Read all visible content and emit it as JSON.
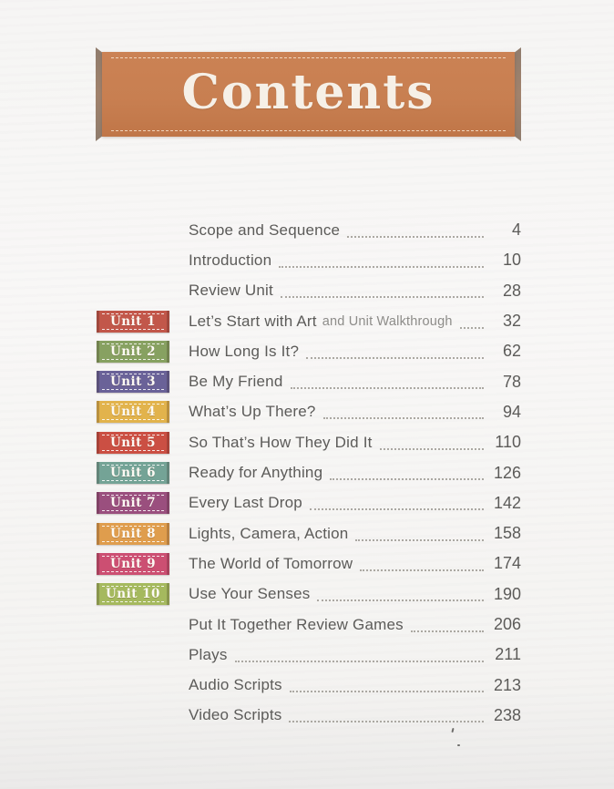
{
  "banner": {
    "title": "Contents",
    "ribbon_color": "#c87f51",
    "ribbon_edge_color": "#96806f",
    "title_color": "#f6f0e7"
  },
  "toc": {
    "entries": [
      {
        "unit": null,
        "unit_color": null,
        "title": "Scope and Sequence",
        "subtitle": null,
        "page": "4"
      },
      {
        "unit": null,
        "unit_color": null,
        "title": "Introduction",
        "subtitle": null,
        "page": "10"
      },
      {
        "unit": null,
        "unit_color": null,
        "title": "Review Unit",
        "subtitle": null,
        "page": "28"
      },
      {
        "unit": "Unit 1",
        "unit_color": "#c2574a",
        "title": "Let’s Start with Art",
        "subtitle": "and Unit Walkthrough",
        "page": "32"
      },
      {
        "unit": "Unit 2",
        "unit_color": "#87a161",
        "title": "How Long Is It?",
        "subtitle": null,
        "page": "62"
      },
      {
        "unit": "Unit 3",
        "unit_color": "#6a6298",
        "title": "Be My Friend",
        "subtitle": null,
        "page": "78"
      },
      {
        "unit": "Unit 4",
        "unit_color": "#e2b34c",
        "title": "What’s Up There?",
        "subtitle": null,
        "page": "94"
      },
      {
        "unit": "Unit 5",
        "unit_color": "#cb4f43",
        "title": "So That’s How They Did It",
        "subtitle": null,
        "page": "110"
      },
      {
        "unit": "Unit 6",
        "unit_color": "#74a396",
        "title": "Ready for Anything",
        "subtitle": null,
        "page": "126"
      },
      {
        "unit": "Unit 7",
        "unit_color": "#9a4f7e",
        "title": "Every Last Drop",
        "subtitle": null,
        "page": "142"
      },
      {
        "unit": "Unit 8",
        "unit_color": "#df9d4d",
        "title": "Lights, Camera, Action",
        "subtitle": null,
        "page": "158"
      },
      {
        "unit": "Unit 9",
        "unit_color": "#cc4f72",
        "title": "The World of Tomorrow",
        "subtitle": null,
        "page": "174"
      },
      {
        "unit": "Unit 10",
        "unit_color": "#a5b95e",
        "title": "Use Your Senses",
        "subtitle": null,
        "page": "190"
      },
      {
        "unit": null,
        "unit_color": null,
        "title": "Put It Together Review Games",
        "subtitle": null,
        "page": "206"
      },
      {
        "unit": null,
        "unit_color": null,
        "title": "Plays",
        "subtitle": null,
        "page": "211"
      },
      {
        "unit": null,
        "unit_color": null,
        "title": "Audio Scripts",
        "subtitle": null,
        "page": "213"
      },
      {
        "unit": null,
        "unit_color": null,
        "title": "Video Scripts",
        "subtitle": null,
        "page": "238"
      }
    ]
  }
}
